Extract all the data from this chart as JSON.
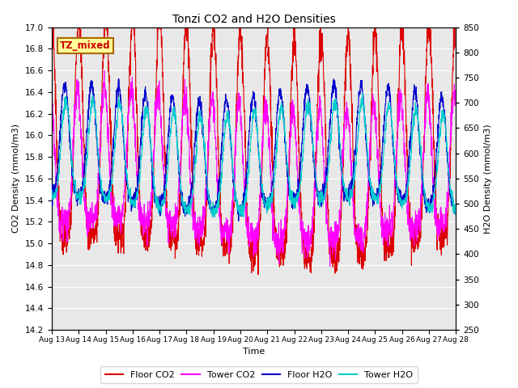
{
  "title": "Tonzi CO2 and H2O Densities",
  "xlabel": "Time",
  "ylabel_left": "CO2 Density (mmol/m3)",
  "ylabel_right": "H2O Density (mmol/m3)",
  "annotation": "TZ_mixed",
  "annotation_color": "#cc0000",
  "annotation_bg": "#ffff99",
  "annotation_border": "#aa6600",
  "ylim_left": [
    14.2,
    17.0
  ],
  "ylim_right": [
    250,
    850
  ],
  "yticks_left": [
    14.2,
    14.4,
    14.6,
    14.8,
    15.0,
    15.2,
    15.4,
    15.6,
    15.8,
    16.0,
    16.2,
    16.4,
    16.6,
    16.8,
    17.0
  ],
  "yticks_right": [
    250,
    300,
    350,
    400,
    450,
    500,
    550,
    600,
    650,
    700,
    750,
    800,
    850
  ],
  "xtick_labels": [
    "Aug 13",
    "Aug 14",
    "Aug 15",
    "Aug 16",
    "Aug 17",
    "Aug 18",
    "Aug 19",
    "Aug 20",
    "Aug 21",
    "Aug 22",
    "Aug 23",
    "Aug 24",
    "Aug 25",
    "Aug 26",
    "Aug 27",
    "Aug 28"
  ],
  "colors": {
    "floor_co2": "#dd0000",
    "tower_co2": "#ff00ff",
    "floor_h2o": "#0000cc",
    "tower_h2o": "#00cccc"
  },
  "legend_labels": [
    "Floor CO2",
    "Tower CO2",
    "Floor H2O",
    "Tower H2O"
  ],
  "plot_bg_color": "#e8e8e8",
  "fig_bg_color": "#ffffff",
  "grid_color": "#ffffff"
}
